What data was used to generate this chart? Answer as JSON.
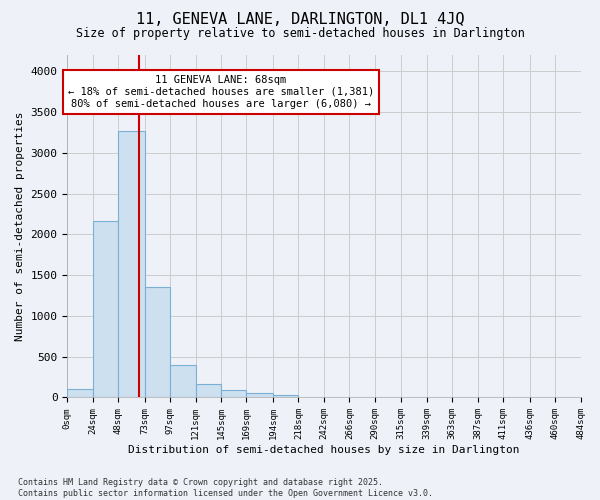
{
  "title": "11, GENEVA LANE, DARLINGTON, DL1 4JQ",
  "subtitle": "Size of property relative to semi-detached houses in Darlington",
  "xlabel": "Distribution of semi-detached houses by size in Darlington",
  "ylabel": "Number of semi-detached properties",
  "bar_edges": [
    0,
    24,
    48,
    73,
    97,
    121,
    145,
    169,
    194,
    218,
    242,
    266,
    290,
    315,
    339,
    363,
    387,
    411,
    436,
    460,
    484
  ],
  "bar_heights": [
    100,
    2170,
    3270,
    1350,
    400,
    165,
    90,
    55,
    35,
    0,
    0,
    0,
    0,
    0,
    0,
    0,
    0,
    0,
    0,
    0
  ],
  "bar_color": "#cce0f0",
  "bar_edge_color": "#7ab0d4",
  "grid_color": "#cccccc",
  "vline_x": 68,
  "vline_color": "#cc0000",
  "annotation_line1": "11 GENEVA LANE: 68sqm",
  "annotation_line2": "← 18% of semi-detached houses are smaller (1,381)",
  "annotation_line3": "80% of semi-detached houses are larger (6,080) →",
  "annotation_box_color": "#ffffff",
  "annotation_box_edge": "#cc0000",
  "ylim": [
    0,
    4200
  ],
  "yticks": [
    0,
    500,
    1000,
    1500,
    2000,
    2500,
    3000,
    3500,
    4000
  ],
  "background_color": "#eef2f8",
  "footer_text": "Contains HM Land Registry data © Crown copyright and database right 2025.\nContains public sector information licensed under the Open Government Licence v3.0.",
  "tick_labels": [
    "0sqm",
    "24sqm",
    "48sqm",
    "73sqm",
    "97sqm",
    "121sqm",
    "145sqm",
    "169sqm",
    "194sqm",
    "218sqm",
    "242sqm",
    "266sqm",
    "290sqm",
    "315sqm",
    "339sqm",
    "363sqm",
    "387sqm",
    "411sqm",
    "436sqm",
    "460sqm",
    "484sqm"
  ]
}
